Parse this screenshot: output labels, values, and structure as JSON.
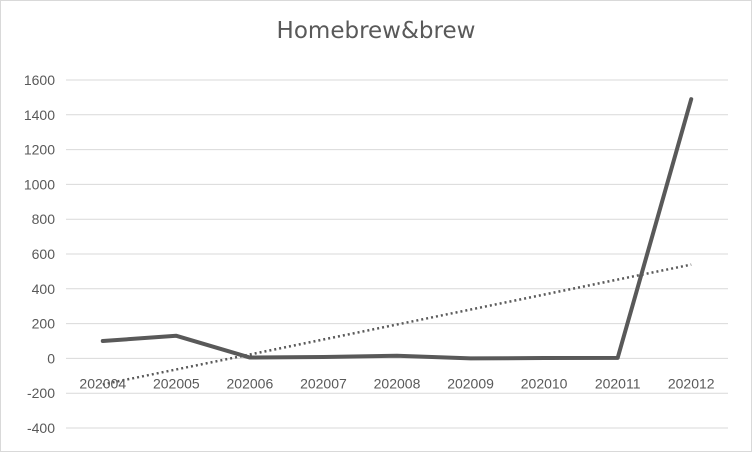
{
  "chart_data": {
    "type": "line",
    "title": "Homebrew&brew",
    "xlabel": "",
    "ylabel": "",
    "categories": [
      "202004",
      "202005",
      "202006",
      "202007",
      "202008",
      "202009",
      "202010",
      "202011",
      "202012"
    ],
    "series": [
      {
        "values": [
          100,
          130,
          5,
          8,
          15,
          0,
          2,
          3,
          1490
        ],
        "color": "#595959",
        "style": "solid"
      }
    ],
    "trendline": {
      "kind": "linear",
      "style": "dotted",
      "color": "#595959"
    },
    "ylim": [
      -400,
      1600
    ],
    "yticks": [
      -400,
      -200,
      0,
      200,
      400,
      600,
      800,
      1000,
      1200,
      1400,
      1600
    ],
    "grid": true,
    "legend": "none"
  }
}
